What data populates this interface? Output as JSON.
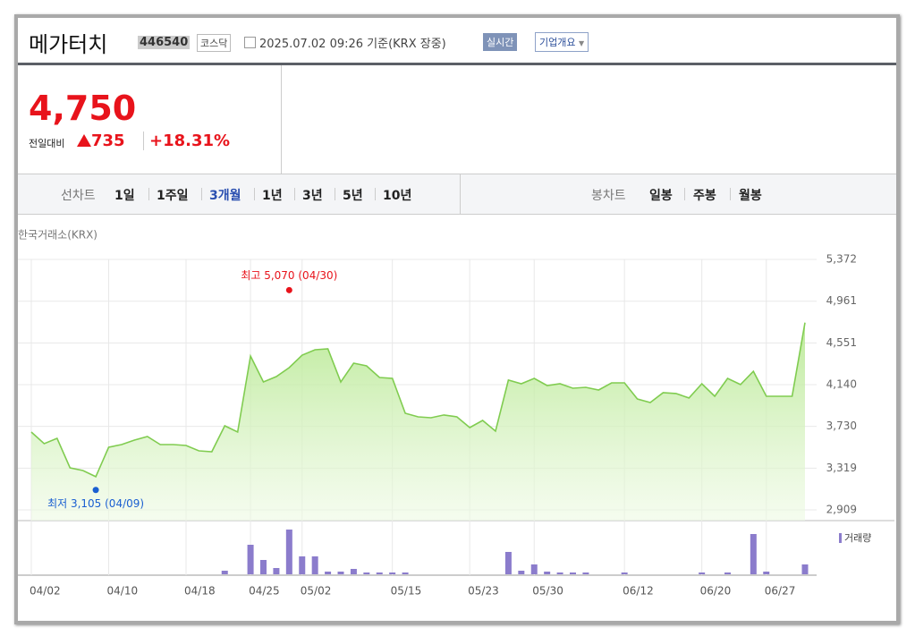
{
  "header": {
    "name": "메가터치",
    "code": "446540",
    "market": "코스닥",
    "date": "2025.07.02 09:26 기준(KRX 장중)",
    "live": "실시간",
    "company": "기업개요"
  },
  "quote": {
    "price": "4,750",
    "change_label": "전일대비",
    "change": "735",
    "change_pct": "+18.31%"
  },
  "tabs": {
    "line_label": "선차트",
    "periods": [
      "1일",
      "1주일",
      "3개월",
      "1년",
      "3년",
      "5년",
      "10년"
    ],
    "active": 2,
    "candle_label": "봉차트",
    "candles": [
      "일봉",
      "주봉",
      "월봉"
    ]
  },
  "chart_data": {
    "type": "line",
    "source": "한국거래소(KRX)",
    "color": "#80cc50",
    "fill": "#c9efae",
    "categories": [
      "04/02",
      null,
      null,
      null,
      null,
      null,
      "04/10",
      null,
      null,
      null,
      null,
      null,
      "04/18",
      null,
      null,
      null,
      null,
      "04/25",
      null,
      null,
      null,
      "05/02",
      null,
      null,
      null,
      null,
      null,
      null,
      "05/15",
      null,
      null,
      null,
      null,
      null,
      "05/23",
      null,
      null,
      null,
      null,
      "05/30",
      null,
      null,
      null,
      null,
      null,
      null,
      "06/12",
      null,
      null,
      null,
      null,
      null,
      "06/20",
      null,
      null,
      null,
      null,
      "06/27",
      null,
      null,
      null
    ],
    "values": [
      3674,
      3560,
      3613,
      3322,
      3296,
      3235,
      3525,
      3551,
      3595,
      3630,
      3551,
      3551,
      3542,
      3490,
      3481,
      3736,
      3674,
      4422,
      4167,
      4220,
      4308,
      4431,
      4484,
      4492,
      4167,
      4352,
      4325,
      4211,
      4202,
      3859,
      3824,
      3815,
      3842,
      3824,
      3718,
      3789,
      3683,
      4185,
      4149,
      4202,
      4132,
      4149,
      4105,
      4114,
      4088,
      4158,
      4158,
      4000,
      3965,
      4061,
      4053,
      4009,
      4149,
      4026,
      4202,
      4141,
      4272,
      4026,
      4026,
      4026,
      4750
    ],
    "ylim": [
      2909,
      5372
    ],
    "yticks": [
      {
        "value": 5372,
        "label": "5,372"
      },
      {
        "value": 4961,
        "label": "4,961"
      },
      {
        "value": 4551,
        "label": "4,551"
      },
      {
        "value": 4140,
        "label": "4,140"
      },
      {
        "value": 3730,
        "label": "3,730"
      },
      {
        "value": 3319,
        "label": "3,319"
      },
      {
        "value": 2909,
        "label": "2,909"
      }
    ],
    "grid": true,
    "annotations": [
      {
        "text": "최고 5,070 (04/30)",
        "value": 5070,
        "index": 20,
        "color": "#e8131b"
      },
      {
        "text": "최저 3,105 (04/09)",
        "value": 3105,
        "index": 5,
        "color": "#1a5fd1"
      }
    ],
    "volume": {
      "name": "거래량",
      "color": "#8b7ccc",
      "ylim": [
        0,
        50
      ],
      "values": [
        0,
        0,
        0,
        0,
        0,
        0,
        0,
        0,
        0,
        0,
        0,
        0,
        0,
        0,
        0,
        4,
        0,
        33,
        16,
        7,
        50,
        20,
        20,
        3,
        3,
        6,
        2,
        2,
        2,
        2,
        0,
        0,
        0,
        0,
        0,
        0,
        0,
        25,
        4,
        11,
        3,
        2,
        2,
        2,
        0,
        0,
        2,
        0,
        0,
        0,
        0,
        0,
        2,
        0,
        2,
        0,
        45,
        3,
        0,
        0,
        11
      ]
    }
  }
}
